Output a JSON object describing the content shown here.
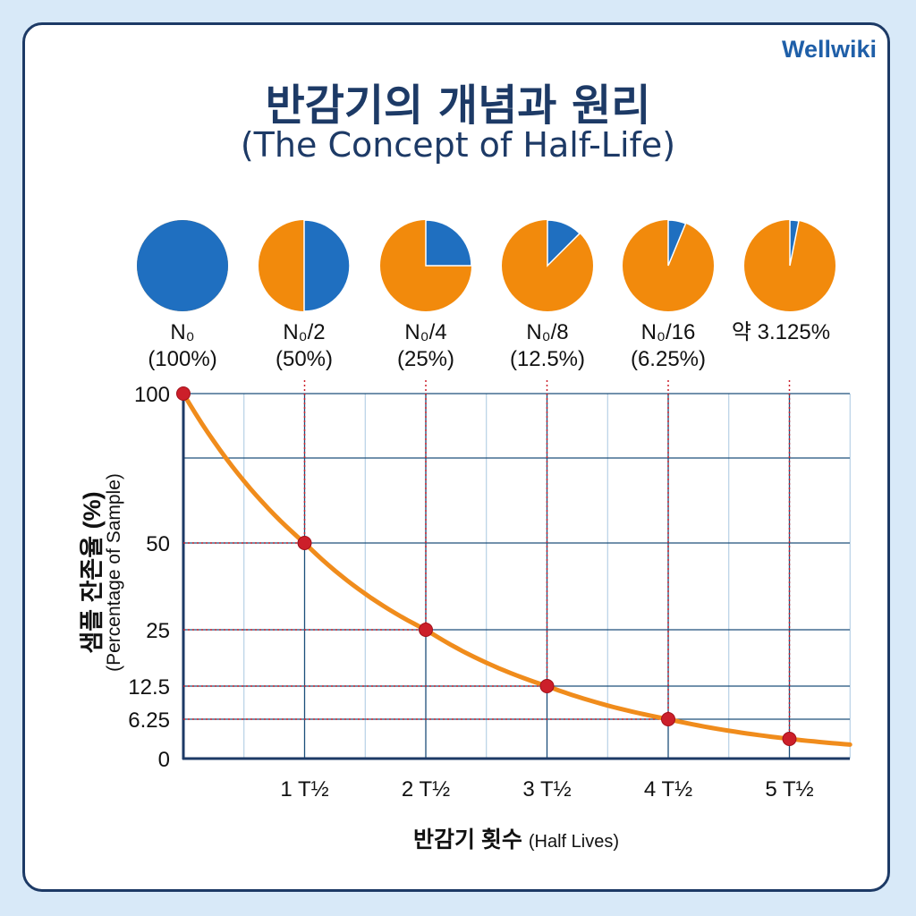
{
  "brand": "Wellwiki",
  "title": "반감기의 개념과 원리",
  "subtitle": "(The Concept of Half-Life)",
  "colors": {
    "remaining": "#f28a0c",
    "decayed": "#1f6fc0",
    "curve": "#f08c1c",
    "points": "#cc1f2a",
    "grid": "#1d4f7a",
    "title": "#1d3a66"
  },
  "pies": [
    {
      "label": "N₀",
      "sub": "(100%)",
      "fraction": 1
    },
    {
      "label": "N₀/2",
      "sub": "(50%)",
      "fraction": 0.5
    },
    {
      "label": "N₀/4",
      "sub": "(25%)",
      "fraction": 0.25
    },
    {
      "label": "N₀/8",
      "sub": "(12.5%)",
      "fraction": 0.125
    },
    {
      "label": "N₀/16",
      "sub": "(6.25%)",
      "fraction": 0.0625
    },
    {
      "label": "약 3.125%",
      "sub": "",
      "fraction": 0.03125
    }
  ],
  "chart_data": {
    "type": "line",
    "xlabel": "반감기 횟수",
    "xlabel_en": "(Half Lives)",
    "ylabel": "샘플 잔존율 (%)",
    "ylabel_en": "(Percentage of Sample)",
    "x_ticks": [
      "1 T½",
      "2 T½",
      "3 T½",
      "4 T½",
      "5 T½"
    ],
    "y_ticks": [
      "100",
      "50",
      "25",
      "12.5",
      "6.25",
      "0"
    ],
    "y_tick_values": [
      100,
      50,
      25,
      12.5,
      6.25,
      0
    ],
    "xlim": [
      0,
      5.5
    ],
    "ylim": [
      0,
      100
    ],
    "grid": true,
    "points": {
      "x": [
        0,
        1,
        2,
        3,
        4,
        5
      ],
      "y": [
        100,
        50,
        25,
        12.5,
        6.25,
        3.125
      ]
    }
  }
}
